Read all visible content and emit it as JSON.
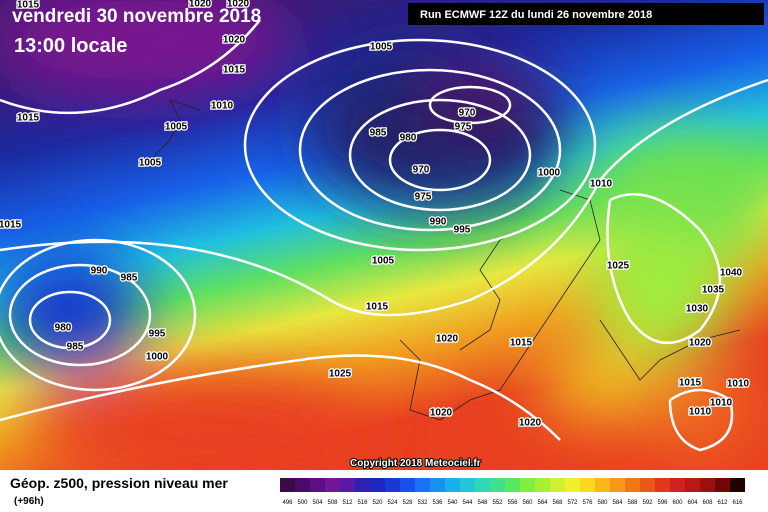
{
  "header": {
    "date": "vendredi 30 novembre 2018",
    "time": "13:00 locale",
    "run": "Run ECMWF 12Z du lundi 26 novembre 2018"
  },
  "isobar_labels": [
    "1015",
    "1020",
    "1020",
    "1015",
    "1020",
    "1015",
    "1010",
    "1005",
    "1005",
    "1005",
    "985",
    "980",
    "970",
    "975",
    "970",
    "975",
    "990",
    "995",
    "1000",
    "1010",
    "1015",
    "990",
    "985",
    "980",
    "985",
    "995",
    "1000",
    "1005",
    "1015",
    "1020",
    "1015",
    "1025",
    "1040",
    "1035",
    "1030",
    "1020",
    "1025",
    "1015",
    "1010",
    "1010",
    "1010",
    "1020",
    "1020"
  ],
  "copyright": "Copyright 2018 Meteociel.fr",
  "footer": {
    "title": "Géop. z500, pression niveau mer",
    "lead": "(+96h)"
  },
  "legend": {
    "values": [
      496,
      500,
      504,
      508,
      512,
      516,
      520,
      524,
      528,
      532,
      536,
      540,
      544,
      548,
      552,
      556,
      560,
      564,
      568,
      572,
      576,
      580,
      584,
      588,
      592,
      596,
      600,
      604,
      608,
      612,
      616
    ],
    "colors": [
      "#3a0a4a",
      "#4a0a6a",
      "#5c1080",
      "#701898",
      "#5a1aa8",
      "#3020b0",
      "#1a28c0",
      "#1838d8",
      "#1850f0",
      "#1a70f8",
      "#1890f0",
      "#18b0e8",
      "#20c8d8",
      "#30d8b8",
      "#40e090",
      "#58e860",
      "#80f040",
      "#a8f030",
      "#d0f030",
      "#f0f030",
      "#f8d820",
      "#f8b818",
      "#f89818",
      "#f07818",
      "#e85818",
      "#e03818",
      "#d02020",
      "#b81818",
      "#981010",
      "#700808",
      "#200000"
    ]
  }
}
